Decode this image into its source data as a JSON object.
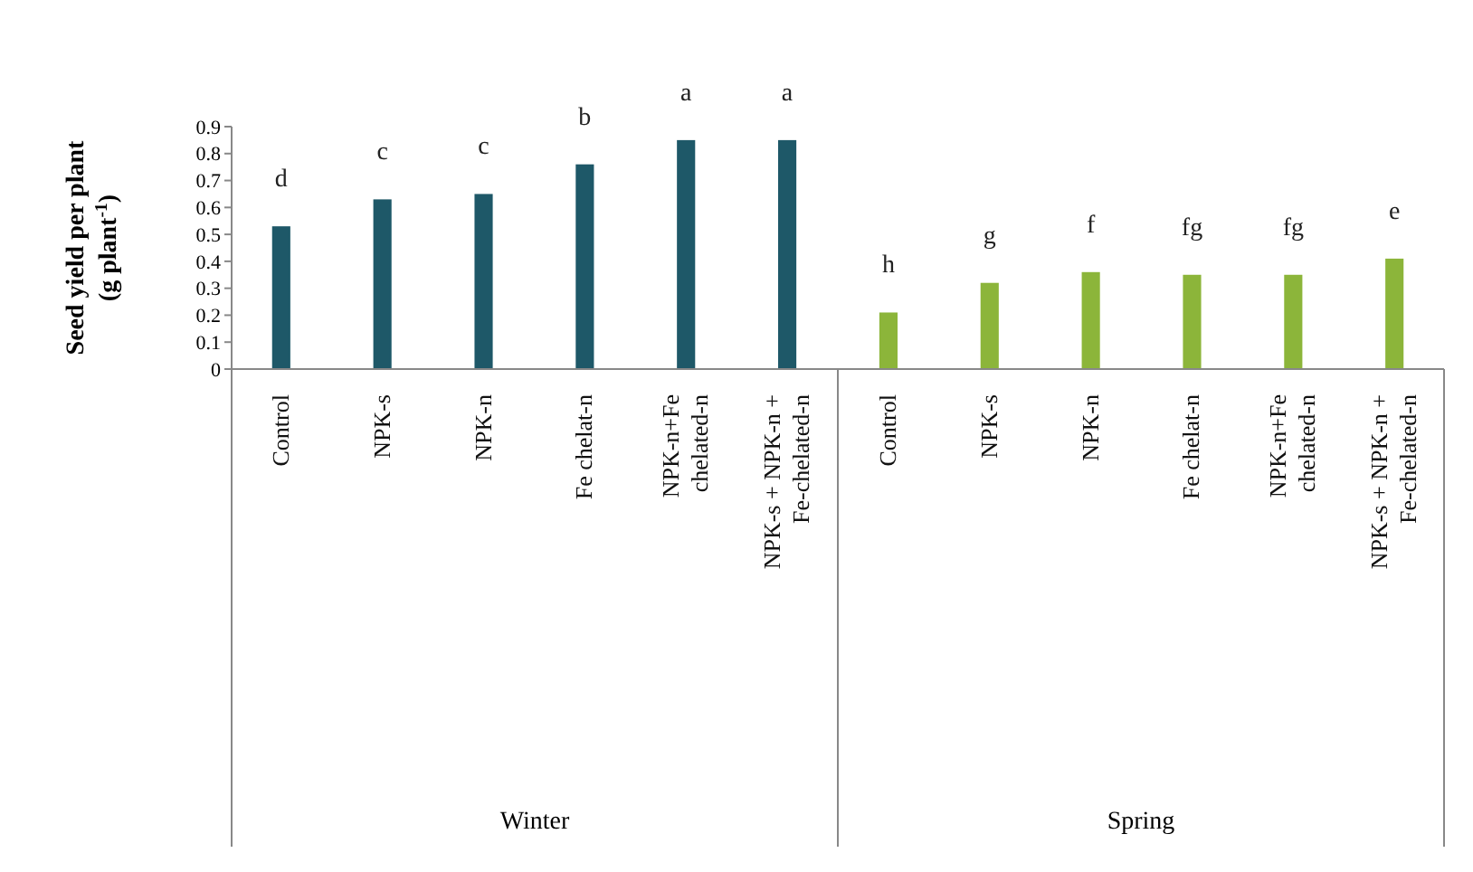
{
  "chart_data": {
    "type": "bar",
    "ylabel": "Seed yield per plant\n(g plant$^{-1}$)",
    "categories": [
      "Control",
      "NPK-s",
      "NPK-n",
      "Fe chelat-n",
      "NPK-n+Fe chelated-n",
      "NPK-s + NPK-n + Fe-chelated-n",
      "Control",
      "NPK-s",
      "NPK-n",
      "Fe chelat-n",
      "NPK-n+Fe chelated-n",
      "NPK-s + NPK-n + Fe-chelated-n"
    ],
    "values": [
      0.53,
      0.63,
      0.65,
      0.76,
      0.85,
      0.85,
      0.21,
      0.32,
      0.36,
      0.35,
      0.35,
      0.41
    ],
    "colors": [
      "#1e5868",
      "#1e5868",
      "#1e5868",
      "#1e5868",
      "#1e5868",
      "#1e5868",
      "#8cb53a",
      "#8cb53a",
      "#8cb53a",
      "#8cb53a",
      "#8cb53a",
      "#8cb53a"
    ],
    "value_labels": [
      "d",
      "c",
      "c",
      "b",
      "a",
      "a",
      "h",
      "g",
      "f",
      "fg",
      "fg",
      "e"
    ],
    "annotations": [
      "Winter",
      "Spring"
    ],
    "ylim": [
      0,
      0.9
    ],
    "yticks": [
      0,
      0.1,
      0.2,
      0.3,
      0.4,
      0.5,
      0.6,
      0.7,
      0.8,
      0.9
    ],
    "grid": false
  }
}
